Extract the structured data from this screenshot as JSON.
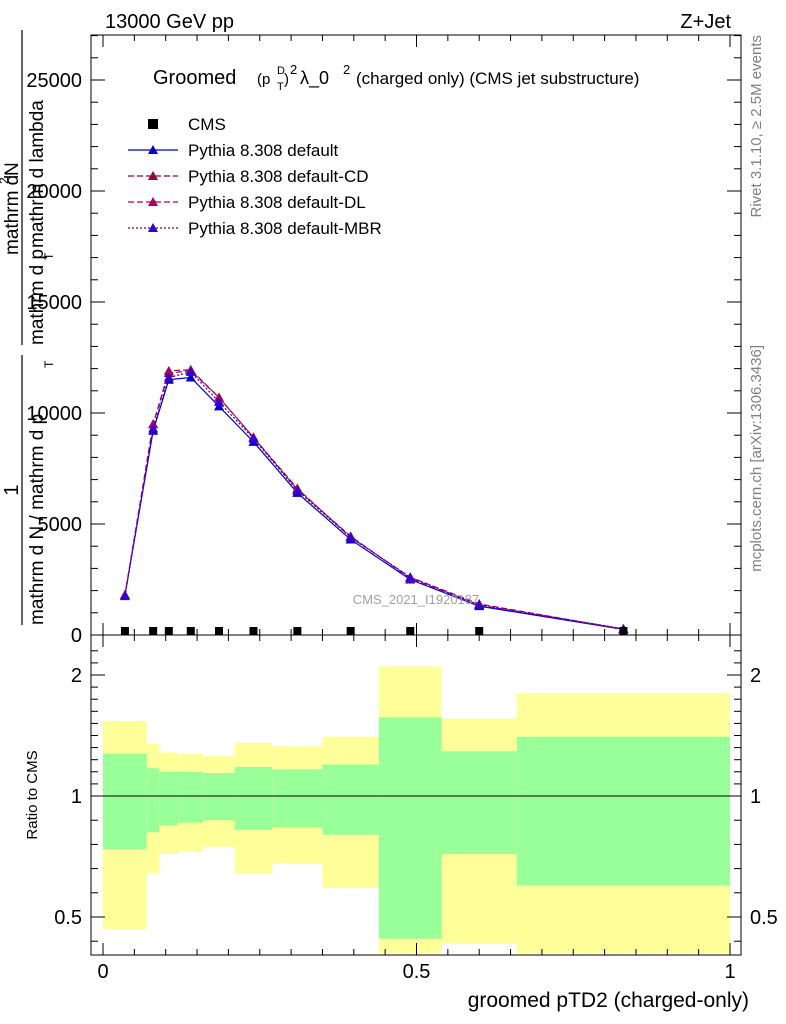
{
  "header": {
    "left": "13000 GeV pp",
    "right": "Z+Jet"
  },
  "side": {
    "rivet": "Rivet 3.1.10, ≥ 2.5M events",
    "mcplots": "mcplots.cern.ch [arXiv:1306.3436]"
  },
  "title": {
    "groomed": "Groomed",
    "paren_open": "(p",
    "sup_D": "D",
    "sub_T": "T",
    "paren_close": ")",
    "sup_2a": "2",
    "lambda": "λ_0",
    "sup_2b": "2",
    "rest": "(charged only) (CMS jet substructure)"
  },
  "watermark": "CMS_2021_I1920187",
  "ylabel": {
    "num_one": "1",
    "denom": "mathrm d N / mathrm d p",
    "denom_sub": "T",
    "right_num": "mathrm d",
    "right_num_sup": "2",
    "right_num_tail": "N",
    "right_den": "mathrm d p",
    "right_den_sub": "T",
    "right_den_tail": "mathrm d lambda"
  },
  "ratio_ylabel": "Ratio to CMS",
  "xlabel": "groomed pTD2 (charged-only)",
  "legend": [
    {
      "label": "CMS",
      "color": "#000000",
      "style": "marker"
    },
    {
      "label": "Pythia 8.308 default",
      "color": "#0000cc",
      "style": "solid"
    },
    {
      "label": "Pythia 8.308 default-CD",
      "color": "#990033",
      "style": "dashed"
    },
    {
      "label": "Pythia 8.308 default-DL",
      "color": "#aa0066",
      "style": "dashed"
    },
    {
      "label": "Pythia 8.308 default-MBR",
      "color": "#3300cc",
      "style": "dotted"
    }
  ],
  "main_yticks": [
    "0",
    "5000",
    "10000",
    "15000",
    "20000",
    "25000"
  ],
  "ratio_yticks": [
    "0.5",
    "1",
    "2"
  ],
  "xticks": [
    "0",
    "0.5",
    "1"
  ],
  "chart_data": {
    "type": "line",
    "xlim": [
      0,
      1
    ],
    "ylim": [
      0,
      27000
    ],
    "ratio_ylim": [
      0.35,
      2.35
    ],
    "bin_edges": [
      0,
      0.07,
      0.09,
      0.12,
      0.16,
      0.21,
      0.27,
      0.35,
      0.44,
      0.54,
      0.66,
      1.0
    ],
    "x": [
      0.035,
      0.08,
      0.105,
      0.14,
      0.185,
      0.24,
      0.31,
      0.395,
      0.49,
      0.6,
      0.83
    ],
    "cms": [
      0,
      0,
      0,
      0,
      0,
      0,
      0,
      0,
      0,
      0,
      0
    ],
    "series": [
      {
        "name": "Pythia 8.308 default",
        "color": "#0000cc",
        "dash": "",
        "values": [
          1800,
          9200,
          11500,
          11600,
          10300,
          8700,
          6400,
          4300,
          2500,
          1300,
          250
        ]
      },
      {
        "name": "Pythia 8.308 default-CD",
        "color": "#990033",
        "dash": "6,3",
        "values": [
          1800,
          9500,
          11800,
          11900,
          10700,
          8900,
          6600,
          4400,
          2600,
          1400,
          260
        ]
      },
      {
        "name": "Pythia 8.308 default-DL",
        "color": "#aa0066",
        "dash": "6,3",
        "values": [
          1800,
          9500,
          11900,
          11950,
          10700,
          8900,
          6550,
          4450,
          2550,
          1350,
          270
        ]
      },
      {
        "name": "Pythia 8.308 default-MBR",
        "color": "#3300cc",
        "dash": "2,2",
        "values": [
          1750,
          9300,
          11600,
          11850,
          10500,
          8850,
          6500,
          4400,
          2600,
          1350,
          280
        ]
      }
    ],
    "ratio_bands": {
      "yellow_lo": [
        0.45,
        0.68,
        0.76,
        0.77,
        0.79,
        0.68,
        0.72,
        0.62,
        0.35,
        0.39,
        0.35
      ],
      "yellow_hi": [
        1.62,
        1.43,
        1.36,
        1.35,
        1.33,
        1.44,
        1.41,
        1.49,
        2.07,
        1.64,
        1.85
      ],
      "green_lo": [
        0.78,
        0.85,
        0.88,
        0.89,
        0.9,
        0.86,
        0.87,
        0.84,
        0.41,
        0.76,
        0.63
      ],
      "green_hi": [
        1.35,
        1.23,
        1.2,
        1.2,
        1.19,
        1.24,
        1.22,
        1.26,
        1.65,
        1.37,
        1.49
      ]
    }
  }
}
